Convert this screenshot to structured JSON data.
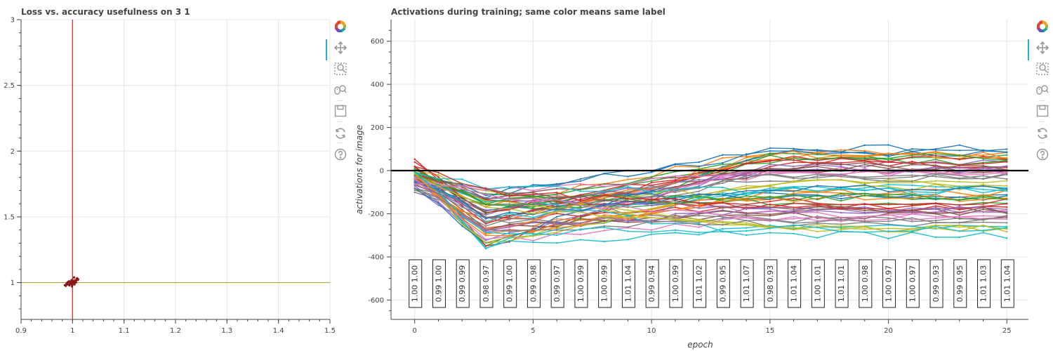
{
  "toolbar": {
    "tools": [
      "bokeh-logo",
      "pan-tool",
      "box-zoom-tool",
      "wheel-zoom-tool",
      "save-tool",
      "reset-tool",
      "help-tool"
    ]
  },
  "colors": {
    "grid": "#e5e5e5",
    "axis": "#444444",
    "vline": "#d62728",
    "hline": "#b5a642",
    "cluster": "#8b1a1a",
    "zero_line": "#000000",
    "tool_accent": "#26aae1"
  },
  "chart_data": [
    {
      "type": "scatter",
      "title": "Loss vs. accuracy usefulness on 3 1",
      "xlabel": "",
      "ylabel": "",
      "xlim": [
        0.9,
        1.5
      ],
      "ylim": [
        0.72,
        3.0
      ],
      "xticks": [
        0.9,
        1,
        1.1,
        1.2,
        1.3,
        1.4,
        1.5
      ],
      "xtick_labels": [
        "0.9",
        "1",
        "1.1",
        "1.2",
        "1.3",
        "1.4",
        "1.5"
      ],
      "yticks": [
        1,
        1.5,
        2,
        2.5,
        3
      ],
      "ytick_labels": [
        "1",
        "1.5",
        "2",
        "2.5",
        "3"
      ],
      "vline_x": 1.0,
      "hline_y": 1.0,
      "points": [
        [
          0.987,
          0.975
        ],
        [
          0.992,
          0.985
        ],
        [
          1.0,
          1.0
        ],
        [
          1.004,
          1.01
        ],
        [
          0.995,
          0.99
        ],
        [
          1.002,
          0.995
        ],
        [
          0.99,
          1.0
        ],
        [
          1.01,
          1.02
        ],
        [
          0.996,
          1.005
        ],
        [
          1.005,
          1.0
        ],
        [
          0.985,
          0.98
        ],
        [
          1.008,
          1.03
        ],
        [
          1.0,
          0.985
        ],
        [
          0.993,
          1.01
        ],
        [
          1.006,
          1.015
        ],
        [
          0.999,
          0.97
        ],
        [
          1.003,
          1.04
        ],
        [
          0.989,
          0.995
        ],
        [
          1.001,
          1.008
        ],
        [
          0.997,
          0.992
        ],
        [
          1.011,
          1.025
        ],
        [
          0.994,
          0.978
        ],
        [
          1.007,
          1.002
        ],
        [
          0.998,
          1.018
        ],
        [
          0.991,
          1.004
        ],
        [
          1.004,
          0.986
        ],
        [
          1.0,
          1.012
        ],
        [
          0.996,
          0.996
        ],
        [
          1.009,
          1.033
        ],
        [
          0.988,
          0.99
        ],
        [
          1.002,
          1.006
        ],
        [
          0.999,
          0.982
        ]
      ],
      "grid": true,
      "legend": "none"
    },
    {
      "type": "line",
      "title": "Activations during training; same color means same label",
      "xlabel": "epoch",
      "ylabel": "activations for image",
      "xlim": [
        -1,
        26
      ],
      "ylim": [
        -690,
        700
      ],
      "xticks": [
        0,
        5,
        10,
        15,
        20,
        25
      ],
      "xtick_labels": [
        "0",
        "5",
        "10",
        "15",
        "20",
        "25"
      ],
      "yticks": [
        -600,
        -400,
        -200,
        0,
        200,
        400,
        600
      ],
      "ytick_labels": [
        "-600",
        "-400",
        "-200",
        "0",
        "200",
        "400",
        "600"
      ],
      "zero_line": 0,
      "series_colors": [
        "#1f77b4",
        "#ff7f0e",
        "#2ca02c",
        "#d62728",
        "#9467bd",
        "#8c564b",
        "#e377c2",
        "#7f7f7f",
        "#bcbd22",
        "#17becf"
      ],
      "series_count": 60,
      "series_start_values": [
        -50,
        -30,
        -10,
        30,
        -60,
        -20,
        -40,
        -70,
        -15,
        -5
      ],
      "series_final_values": [
        100,
        80,
        60,
        40,
        20,
        0,
        -20,
        -40,
        -60,
        -80,
        -100,
        -120,
        -140,
        -160,
        -180,
        -200,
        -220,
        -240,
        -260,
        -280
      ],
      "label_boxes": [
        [
          "1.00",
          "1.00"
        ],
        [
          "0.99",
          "1.00"
        ],
        [
          "0.99",
          "0.99"
        ],
        [
          "0.98",
          "0.97"
        ],
        [
          "0.99",
          "1.00"
        ],
        [
          "0.99",
          "0.98"
        ],
        [
          "0.99",
          "0.97"
        ],
        [
          "1.00",
          "0.99"
        ],
        [
          "1.00",
          "0.99"
        ],
        [
          "1.01",
          "1.04"
        ],
        [
          "0.99",
          "0.94"
        ],
        [
          "1.00",
          "0.99"
        ],
        [
          "1.01",
          "1.02"
        ],
        [
          "0.99",
          "0.95"
        ],
        [
          "1.01",
          "1.07"
        ],
        [
          "0.98",
          "0.93"
        ],
        [
          "1.01",
          "1.04"
        ],
        [
          "1.00",
          "1.01"
        ],
        [
          "1.01",
          "1.01"
        ],
        [
          "1.00",
          "0.98"
        ],
        [
          "1.00",
          "0.97"
        ],
        [
          "1.00",
          "0.97"
        ],
        [
          "0.99",
          "0.93"
        ],
        [
          "0.99",
          "0.95"
        ],
        [
          "1.01",
          "1.03"
        ],
        [
          "1.01",
          "1.04"
        ]
      ],
      "grid": true,
      "legend": "none"
    }
  ]
}
